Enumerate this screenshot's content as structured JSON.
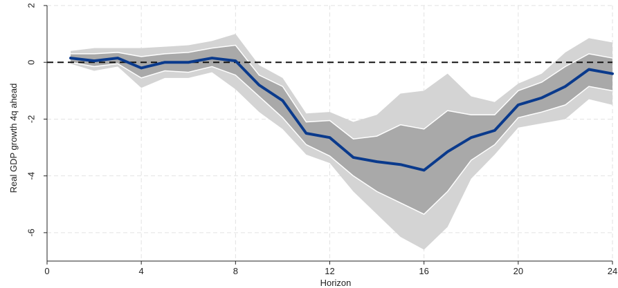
{
  "chart_data": {
    "type": "line",
    "xlabel": "Horizon",
    "ylabel": "Real GDP growth 4q ahead",
    "xlim": [
      0,
      24
    ],
    "ylim": [
      -7,
      2
    ],
    "x_ticks": [
      0,
      4,
      8,
      12,
      16,
      20,
      24
    ],
    "y_ticks": [
      2,
      0,
      -2,
      -4,
      -6
    ],
    "grid": true,
    "reference_line": 0,
    "x": [
      1,
      2,
      3,
      4,
      5,
      6,
      7,
      8,
      9,
      10,
      11,
      12,
      13,
      14,
      15,
      16,
      17,
      18,
      19,
      20,
      21,
      22,
      23,
      24
    ],
    "series": [
      {
        "role": "point_estimate",
        "color": "#0a3a8c",
        "values": [
          0.15,
          0.05,
          0.15,
          -0.2,
          0.0,
          0.0,
          0.15,
          0.05,
          -0.8,
          -1.35,
          -2.5,
          -2.65,
          -3.35,
          -3.5,
          -3.6,
          -3.8,
          -3.15,
          -2.65,
          -2.4,
          -1.5,
          -1.25,
          -0.85,
          -0.25,
          -0.4
        ]
      }
    ],
    "bands": [
      {
        "role": "outer_band",
        "color": "#d4d4d4",
        "upper": [
          0.4,
          0.5,
          0.5,
          0.5,
          0.55,
          0.6,
          0.75,
          1.0,
          -0.1,
          -0.55,
          -1.8,
          -1.75,
          -2.1,
          -1.85,
          -1.1,
          -1.0,
          -0.4,
          -1.2,
          -1.4,
          -0.75,
          -0.4,
          0.35,
          0.85,
          0.7
        ],
        "lower": [
          -0.05,
          -0.3,
          -0.15,
          -0.9,
          -0.55,
          -0.55,
          -0.35,
          -0.95,
          -1.75,
          -2.35,
          -3.25,
          -3.55,
          -4.55,
          -5.35,
          -6.15,
          -6.6,
          -5.8,
          -4.1,
          -3.25,
          -2.3,
          -2.15,
          -2.0,
          -1.3,
          -1.5
        ]
      },
      {
        "role": "inner_band",
        "color": "#a9a9a9",
        "upper": [
          0.3,
          0.3,
          0.35,
          0.2,
          0.3,
          0.35,
          0.5,
          0.6,
          -0.45,
          -0.85,
          -2.1,
          -2.05,
          -2.7,
          -2.6,
          -2.2,
          -2.35,
          -1.7,
          -1.85,
          -1.85,
          -1.0,
          -0.7,
          -0.15,
          0.3,
          0.15
        ],
        "lower": [
          0.0,
          -0.15,
          -0.05,
          -0.55,
          -0.3,
          -0.35,
          -0.15,
          -0.45,
          -1.2,
          -1.95,
          -2.9,
          -3.3,
          -4.0,
          -4.55,
          -4.95,
          -5.35,
          -4.55,
          -3.45,
          -2.9,
          -1.95,
          -1.75,
          -1.5,
          -0.85,
          -1.0
        ]
      }
    ]
  }
}
